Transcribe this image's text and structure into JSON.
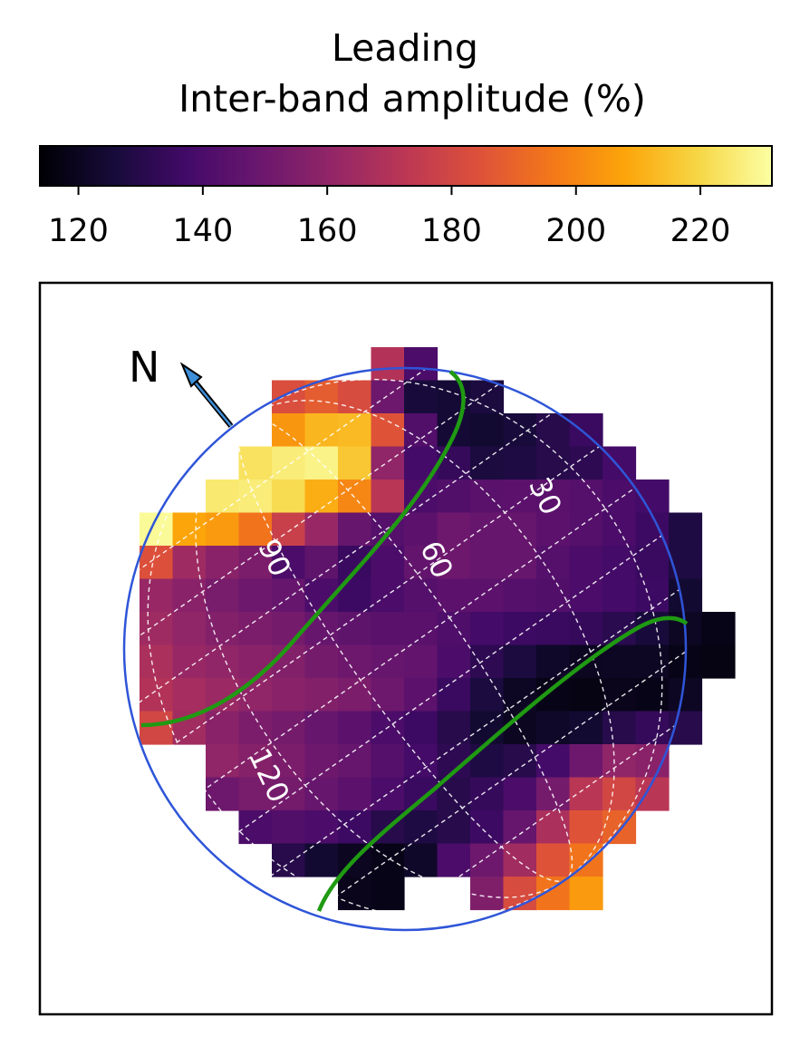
{
  "title": {
    "line1": "Leading",
    "line2": "Inter-band amplitude (%)"
  },
  "colors": {
    "colormap": "inferno",
    "limb_circle": "#2f55d8",
    "green_lines": "#1f9a12",
    "grid_lines": "#ffffff",
    "north_arrow": "#3f8fd8"
  },
  "north_label": "N",
  "chart_data": {
    "type": "heatmap",
    "title": "Leading\nInter-band amplitude (%)",
    "colorbar": {
      "label": "Inter-band amplitude (%)",
      "range": [
        113.8,
        231.5
      ],
      "ticks": [
        "120",
        "140",
        "160",
        "180",
        "200",
        "220"
      ],
      "orientation": "horizontal",
      "position": "top"
    },
    "longitude_labels": [
      "30",
      "60",
      "90",
      "120"
    ],
    "nan_value": 0,
    "grid_rows": [
      [
        0,
        0,
        0,
        0,
        0,
        0,
        0,
        170,
        140,
        0,
        0,
        0,
        0,
        0,
        0,
        0,
        0,
        0
      ],
      [
        0,
        0,
        0,
        0,
        183,
        188,
        182,
        150,
        126,
        125,
        127,
        0,
        0,
        0,
        0,
        0,
        0,
        0
      ],
      [
        0,
        0,
        0,
        0,
        204,
        212,
        213,
        185,
        142,
        125,
        124,
        126,
        130,
        135,
        0,
        0,
        0,
        0
      ],
      [
        0,
        0,
        0,
        223,
        226,
        228,
        216,
        160,
        138,
        134,
        127,
        128,
        130,
        132,
        138,
        0,
        0,
        0
      ],
      [
        0,
        0,
        225,
        226,
        221,
        210,
        200,
        172,
        140,
        142,
        144,
        145,
        144,
        143,
        140,
        138,
        0,
        0
      ],
      [
        230,
        208,
        205,
        195,
        177,
        162,
        148,
        143,
        145,
        150,
        148,
        148,
        145,
        143,
        140,
        136,
        128,
        0
      ],
      [
        184,
        164,
        158,
        154,
        140,
        146,
        135,
        140,
        147,
        150,
        148,
        148,
        143,
        140,
        138,
        135,
        128,
        0
      ],
      [
        162,
        158,
        153,
        150,
        148,
        140,
        136,
        140,
        143,
        145,
        145,
        143,
        142,
        140,
        138,
        136,
        124,
        0
      ],
      [
        164,
        160,
        156,
        154,
        152,
        148,
        146,
        144,
        144,
        141,
        138,
        136,
        135,
        134,
        131,
        126,
        121,
        118
      ],
      [
        168,
        162,
        160,
        158,
        156,
        152,
        150,
        148,
        147,
        140,
        132,
        127,
        122,
        120,
        121,
        121,
        118,
        117
      ],
      [
        170,
        166,
        163,
        160,
        158,
        156,
        154,
        150,
        145,
        135,
        127,
        121,
        118,
        117,
        119,
        118,
        121,
        0
      ],
      [
        180,
        165,
        158,
        154,
        152,
        148,
        145,
        140,
        136,
        130,
        124,
        120,
        122,
        124,
        130,
        134,
        130,
        0
      ],
      [
        0,
        0,
        160,
        157,
        154,
        150,
        148,
        143,
        138,
        132,
        128,
        130,
        138,
        150,
        160,
        158,
        0,
        0
      ],
      [
        0,
        0,
        150,
        153,
        152,
        148,
        145,
        140,
        135,
        130,
        134,
        140,
        152,
        172,
        180,
        172,
        0,
        0
      ],
      [
        0,
        0,
        0,
        140,
        142,
        140,
        136,
        130,
        128,
        130,
        136,
        148,
        168,
        185,
        190,
        0,
        0,
        0
      ],
      [
        0,
        0,
        0,
        0,
        130,
        124,
        120,
        118,
        122,
        140,
        150,
        165,
        185,
        195,
        0,
        0,
        0,
        0
      ],
      [
        0,
        0,
        0,
        0,
        0,
        0,
        119,
        118,
        0,
        0,
        155,
        182,
        195,
        205,
        0,
        0,
        0,
        0
      ]
    ]
  }
}
